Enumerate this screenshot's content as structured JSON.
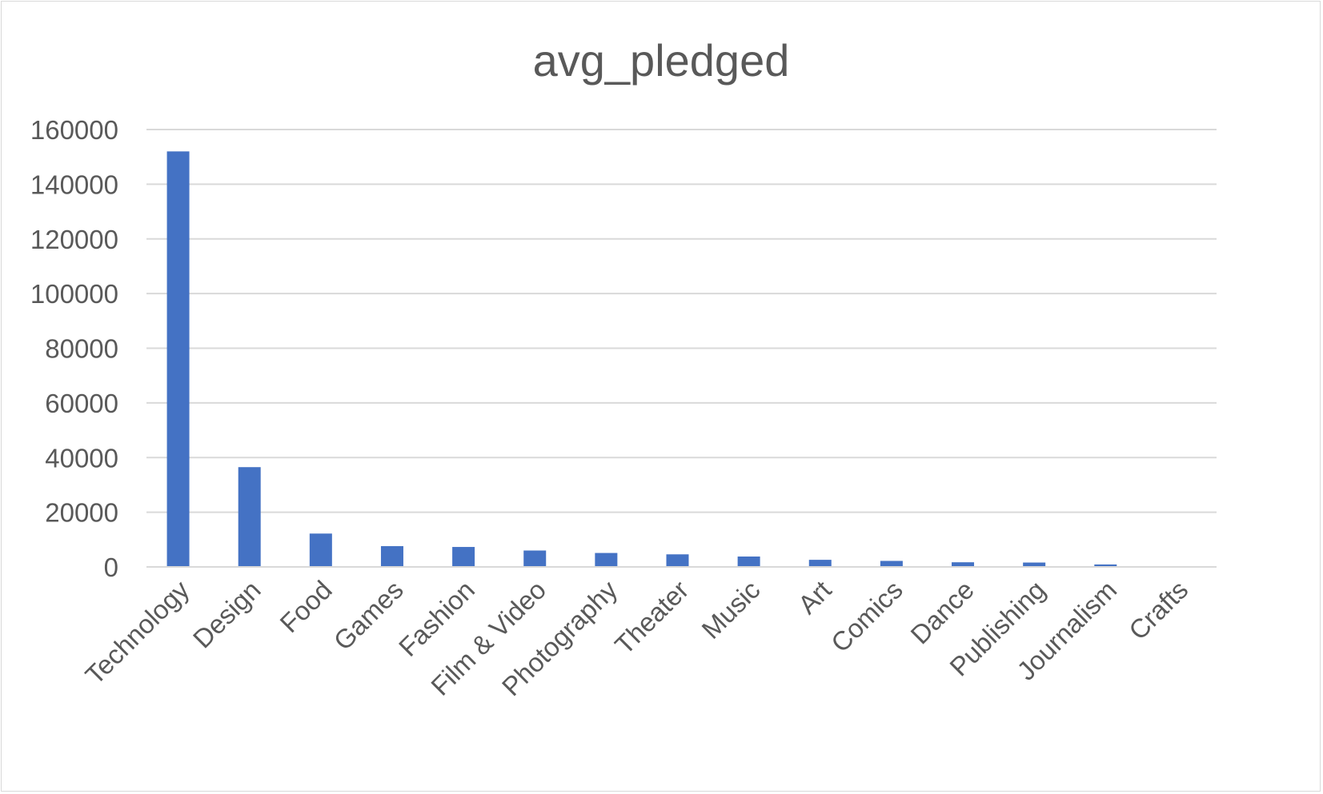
{
  "chart_data": {
    "type": "bar",
    "title": "avg_pledged",
    "xlabel": "",
    "ylabel": "",
    "categories": [
      "Technology",
      "Design",
      "Food",
      "Games",
      "Fashion",
      "Film & Video",
      "Photography",
      "Theater",
      "Music",
      "Art",
      "Comics",
      "Dance",
      "Publishing",
      "Journalism",
      "Crafts"
    ],
    "values": [
      152000,
      36500,
      12200,
      7600,
      7300,
      6000,
      5100,
      4600,
      3800,
      2600,
      2200,
      1700,
      1600,
      900,
      150
    ],
    "ylim": [
      0,
      160000
    ],
    "yticks": [
      "0",
      "20000",
      "40000",
      "60000",
      "80000",
      "100000",
      "120000",
      "140000",
      "160000"
    ],
    "grid": true,
    "legend": "none",
    "bar_color": "#4472c4"
  }
}
